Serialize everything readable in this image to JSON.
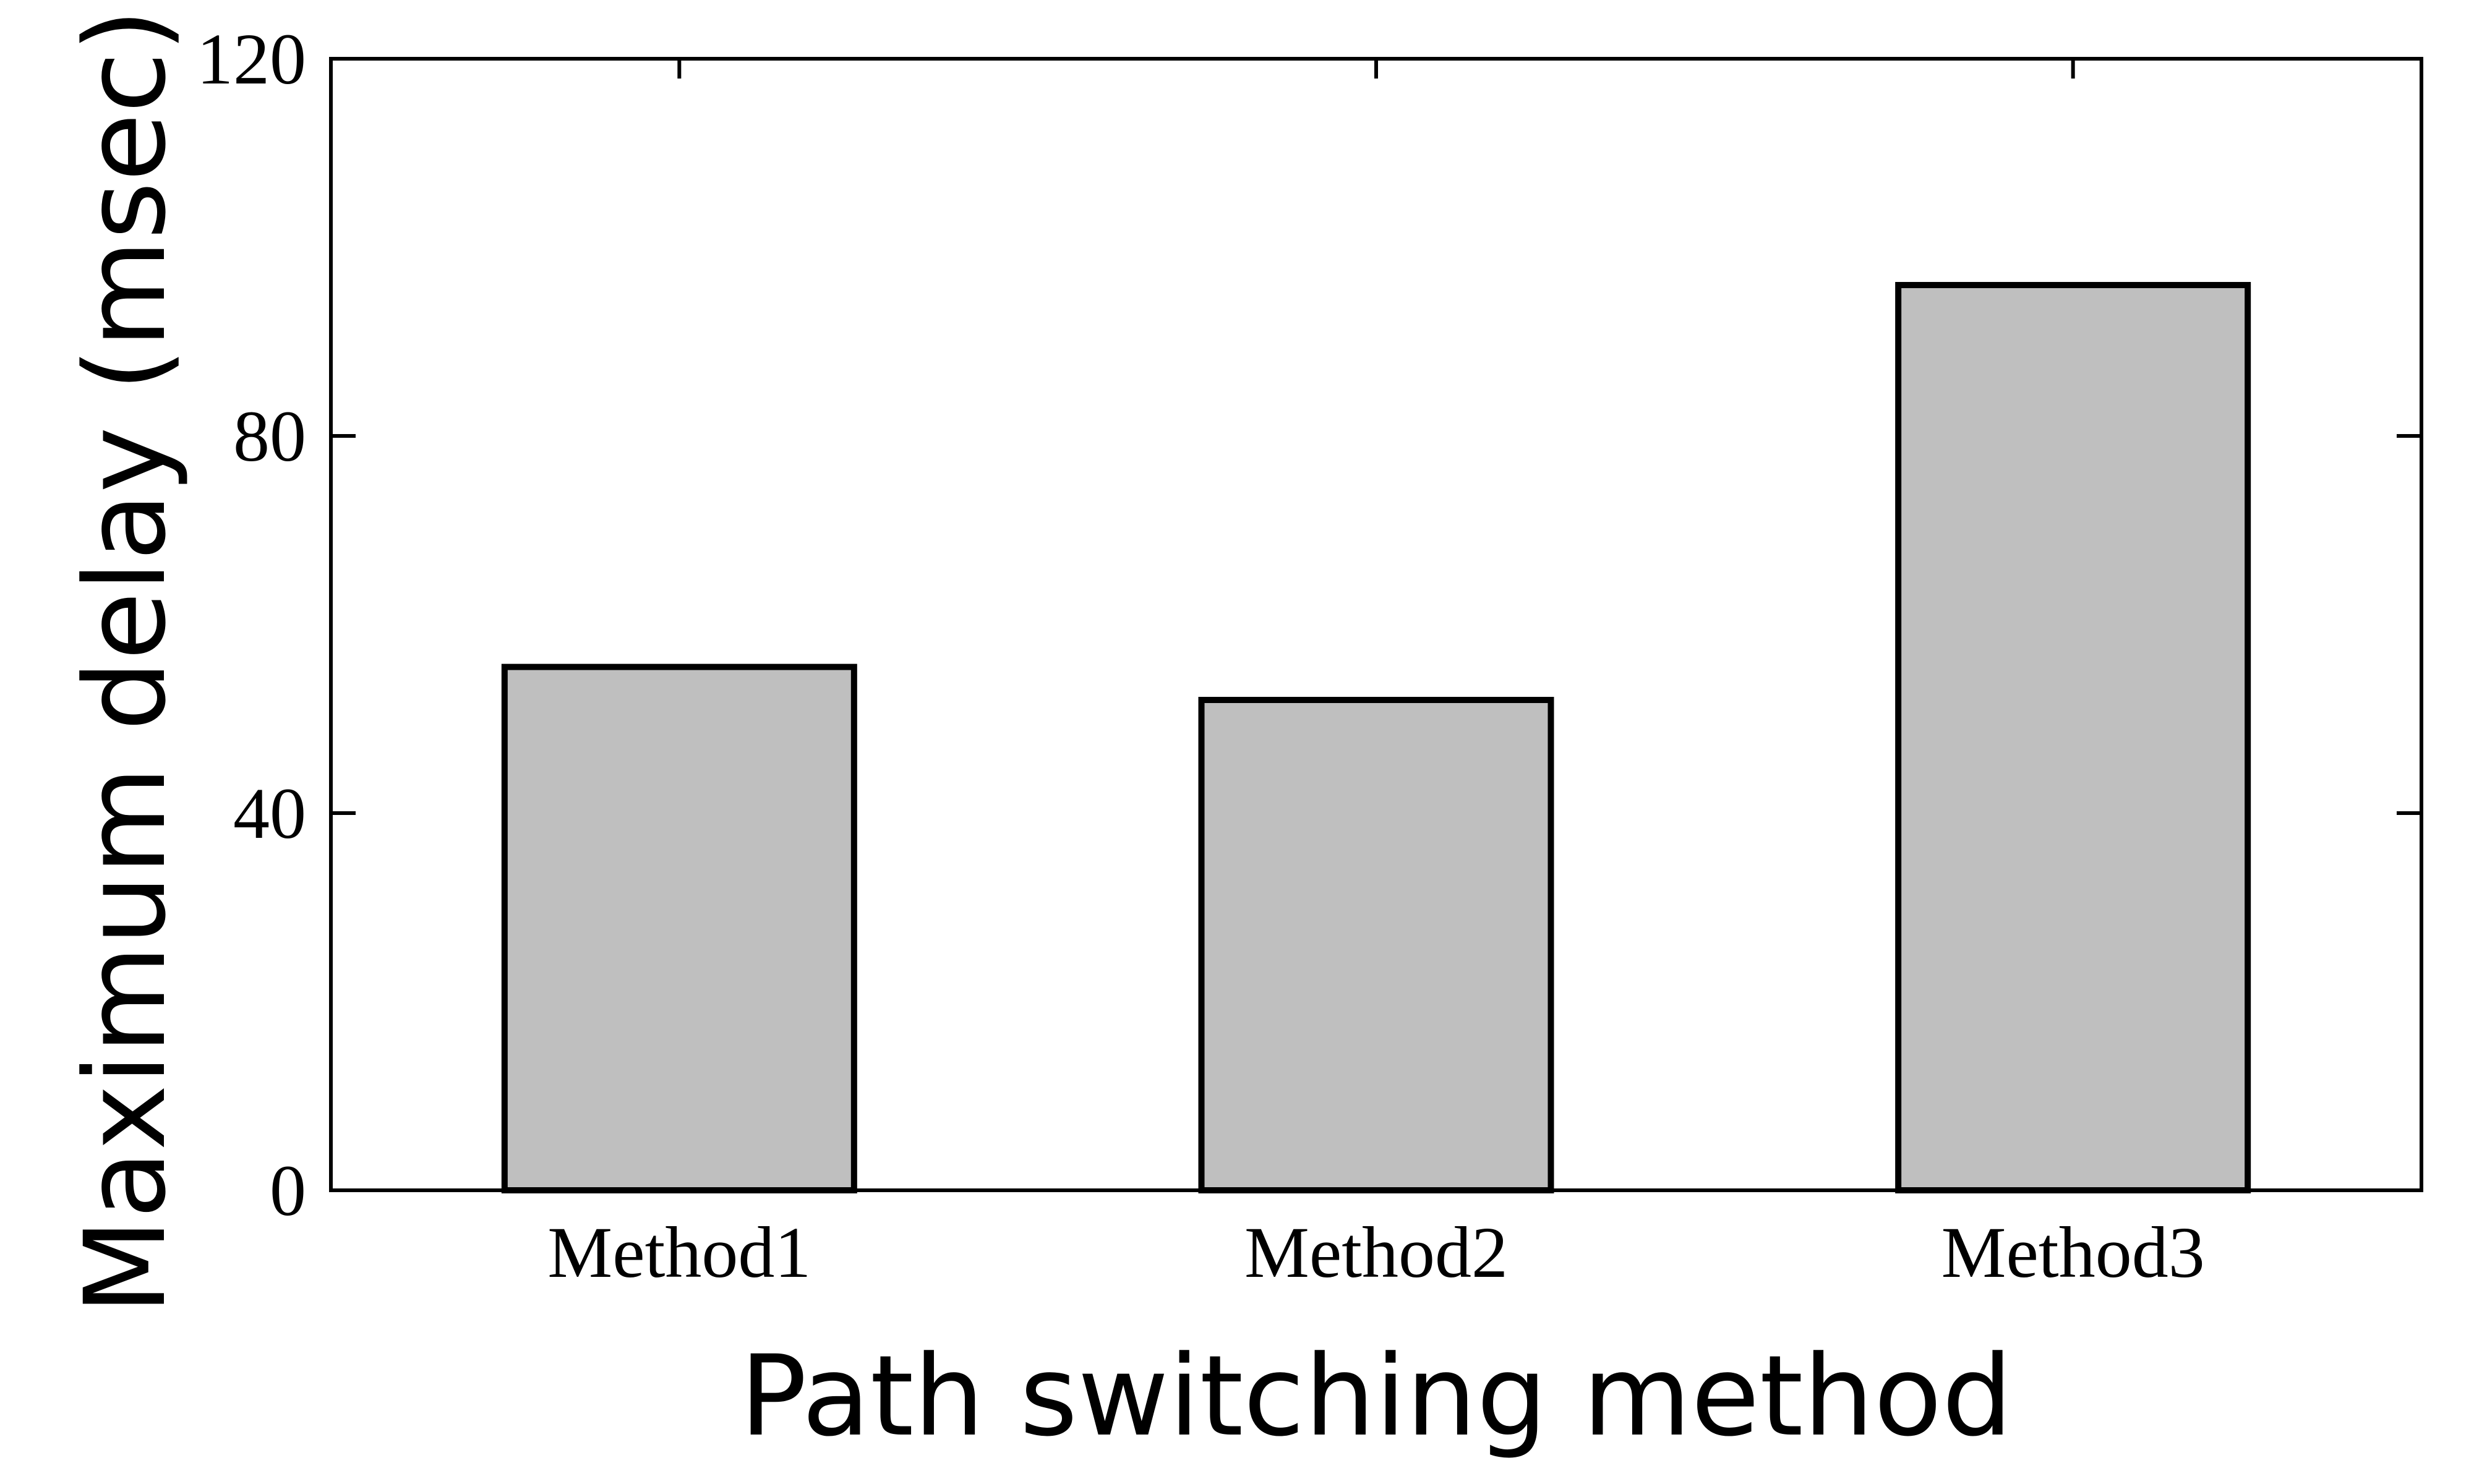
{
  "chart_data": {
    "type": "bar",
    "categories": [
      "Method1",
      "Method2",
      "Method3"
    ],
    "values": [
      55.5,
      52,
      96
    ],
    "title": "",
    "xlabel": "Path switching method",
    "ylabel": "Maximum delay (msec)",
    "ylim": [
      0,
      120
    ],
    "yticks": [
      0,
      40,
      80,
      120
    ],
    "grid": false,
    "colors": {
      "bar_fill": "#bfbfbf",
      "bar_stroke": "#000000",
      "axis": "#000000"
    }
  }
}
